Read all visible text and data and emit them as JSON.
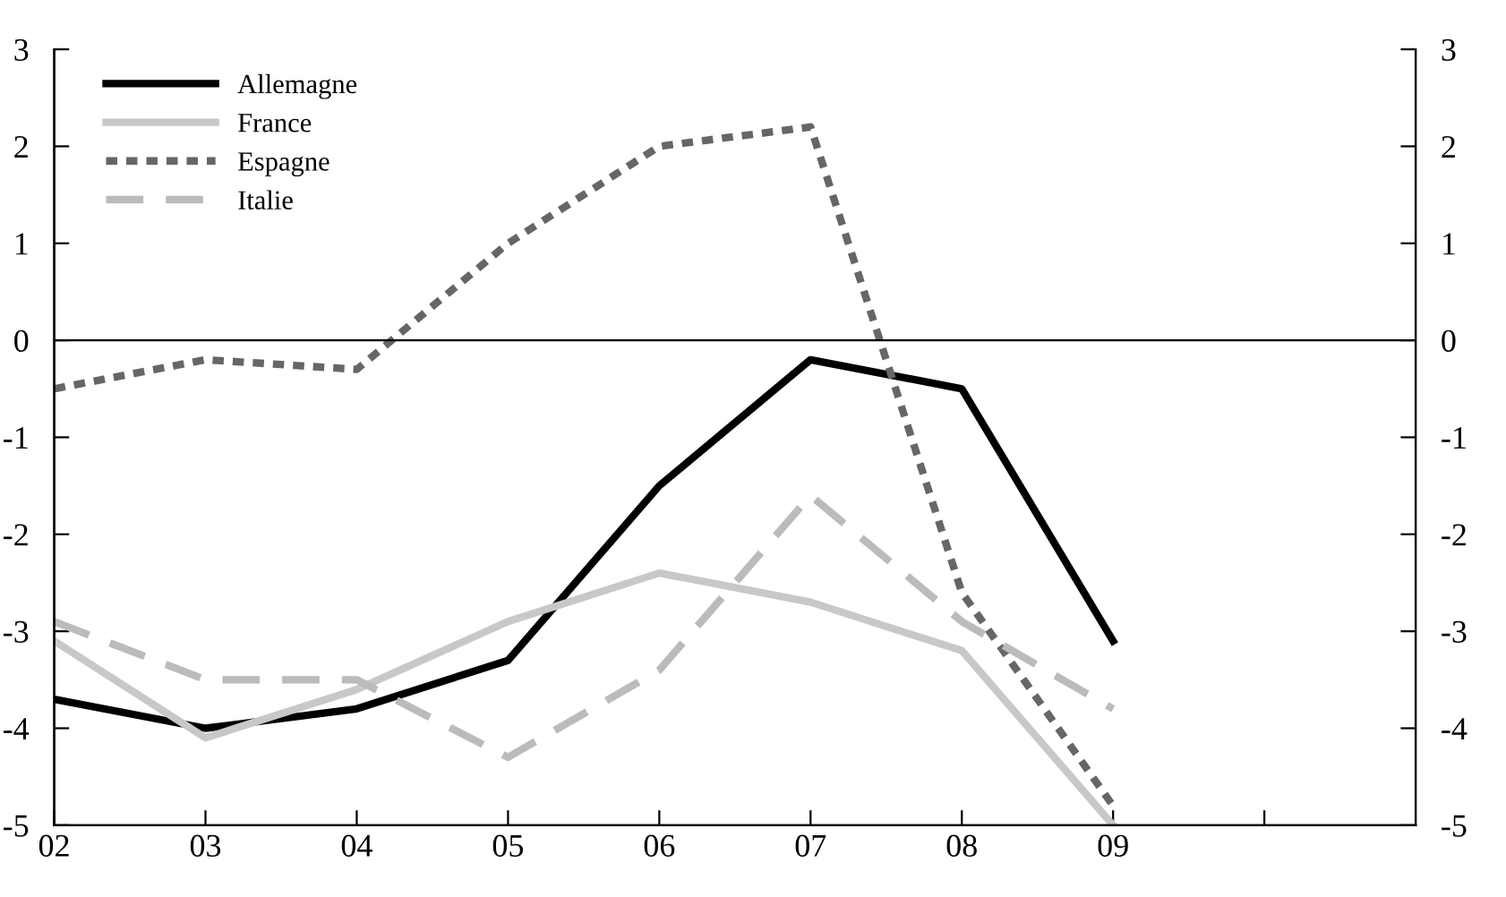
{
  "chart_data": {
    "type": "line",
    "x": [
      2,
      3,
      4,
      5,
      6,
      7,
      8,
      9
    ],
    "series": [
      {
        "name": "Allemagne",
        "color": "#000000",
        "line_style": "solid",
        "values": [
          -3.7,
          -4.0,
          -3.8,
          -3.3,
          -1.5,
          -0.2,
          -0.5,
          -3.1
        ]
      },
      {
        "name": "France",
        "color": "#c8c8c8",
        "line_style": "solid",
        "values": [
          -3.1,
          -4.1,
          -3.6,
          -2.9,
          -2.4,
          -2.7,
          -3.2,
          -5.0
        ]
      },
      {
        "name": "Espagne",
        "color": "#666666",
        "line_style": "dotted",
        "values": [
          -0.5,
          -0.2,
          -0.3,
          1.0,
          2.0,
          2.2,
          -2.6,
          -4.8
        ]
      },
      {
        "name": "Italie",
        "color": "#bbbbbb",
        "line_style": "dashed",
        "values": [
          -2.9,
          -3.5,
          -3.5,
          -4.3,
          -3.4,
          -1.6,
          -2.9,
          -3.8
        ]
      }
    ],
    "xlim": [
      2,
      11
    ],
    "xticks": [
      {
        "value": 2,
        "label": "02"
      },
      {
        "value": 3,
        "label": "03"
      },
      {
        "value": 4,
        "label": "04"
      },
      {
        "value": 5,
        "label": "05"
      },
      {
        "value": 6,
        "label": "06"
      },
      {
        "value": 7,
        "label": "07"
      },
      {
        "value": 8,
        "label": "08"
      },
      {
        "value": 9,
        "label": "09"
      },
      {
        "value": 10,
        "label": null
      }
    ],
    "ylim": [
      -5,
      3
    ],
    "yticks": [
      {
        "value": -5,
        "label": "-5"
      },
      {
        "value": -4,
        "label": "-4"
      },
      {
        "value": -3,
        "label": "-3"
      },
      {
        "value": -2,
        "label": "-2"
      },
      {
        "value": -1,
        "label": "-1"
      },
      0,
      1,
      2,
      3
    ],
    "y2lim": [
      -5,
      3
    ],
    "y2ticks": [
      {
        "value": -5,
        "label": "-5"
      },
      {
        "value": -4,
        "label": "-4"
      },
      {
        "value": -3,
        "label": "-3"
      },
      {
        "value": -2,
        "label": "-2"
      },
      {
        "value": -1,
        "label": "-1"
      },
      0,
      1,
      2,
      3
    ],
    "ref_lines": [
      {
        "axis": "y",
        "value": 0,
        "color": "#000000"
      }
    ],
    "legend": "top left",
    "grid": false
  }
}
